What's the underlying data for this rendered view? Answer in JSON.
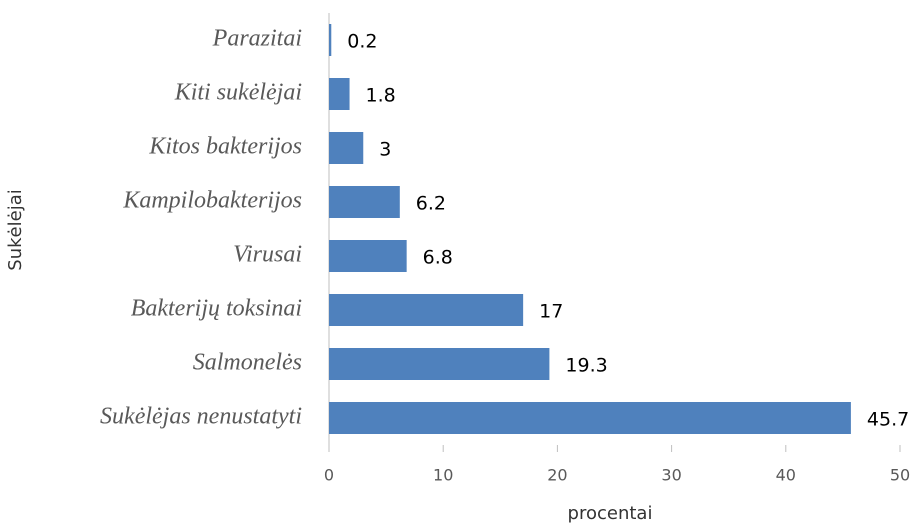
{
  "chart_data": {
    "type": "bar",
    "orientation": "horizontal",
    "categories": [
      "Parazitai",
      "Kiti sukėlėjai",
      "Kitos bakterijos",
      "Kampilobakterijos",
      "Virusai",
      "Bakterijų toksinai",
      "Salmonelės",
      "Sukėlėjas nenustatyti"
    ],
    "values": [
      0.2,
      1.8,
      3,
      6.2,
      6.8,
      17,
      19.3,
      45.7
    ],
    "color": "#4f81bd",
    "xlim": [
      0,
      50
    ],
    "xticks": [
      0,
      10,
      20,
      30,
      40,
      50
    ],
    "xlabel": "procentai",
    "ylabel": "Sukėlėjai",
    "grid": false
  }
}
